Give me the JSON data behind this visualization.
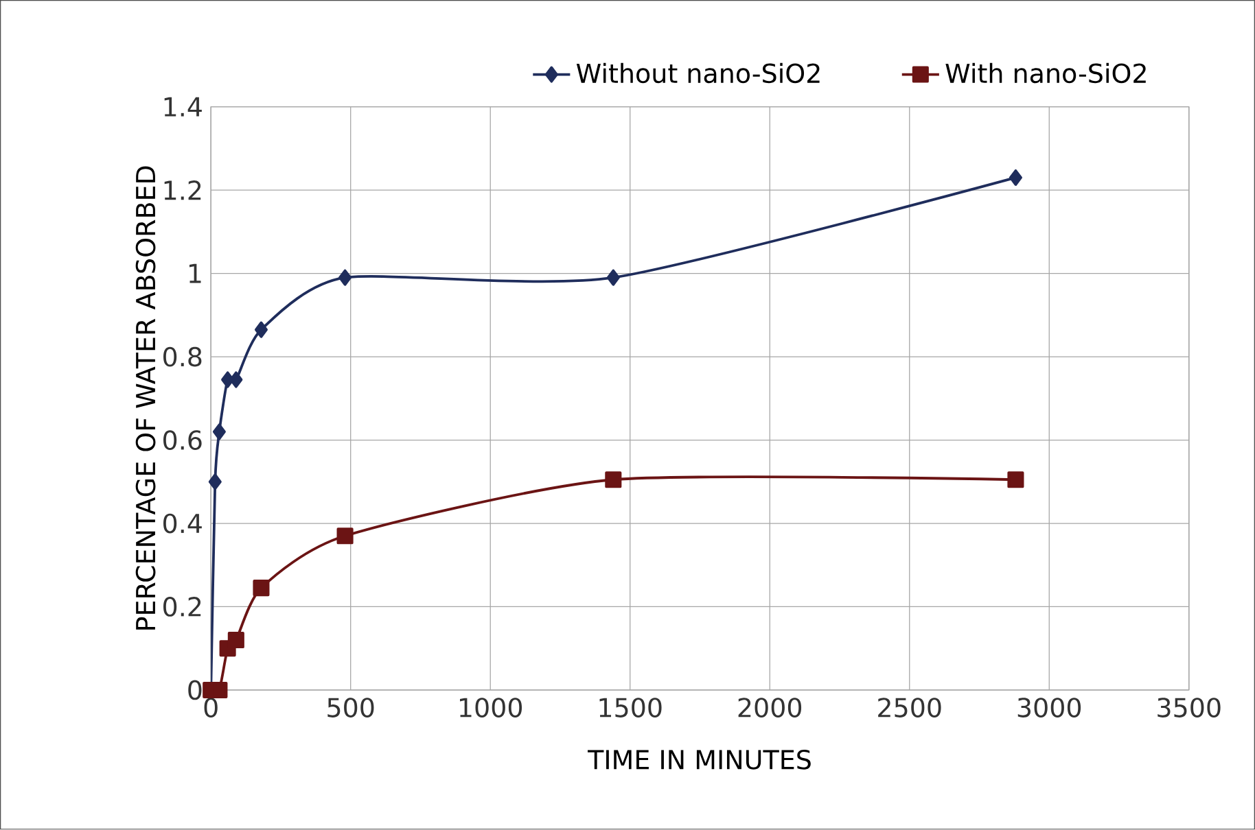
{
  "chart_data": {
    "type": "line",
    "xlabel": "TIME IN MINUTES",
    "ylabel": "PERCENTAGE OF WATER ABSORBED",
    "x": [
      0,
      15,
      30,
      60,
      90,
      180,
      480,
      1440,
      2880
    ],
    "series": [
      {
        "name": "Without nano-SiO2",
        "color": "#1f2d5c",
        "marker": "diamond",
        "values": [
          0,
          0.5,
          0.62,
          0.745,
          0.745,
          0.865,
          0.99,
          0.99,
          1.23
        ]
      },
      {
        "name": "With nano-SiO2",
        "color": "#6b1414",
        "marker": "square",
        "values": [
          0,
          0,
          0.1,
          0.12,
          0.245,
          0.37,
          0.505,
          0.505
        ],
        "x": [
          0,
          30,
          60,
          90,
          180,
          480,
          1440,
          2880
        ]
      }
    ],
    "xlim": [
      0,
      3500
    ],
    "xticks": [
      0,
      500,
      1000,
      1500,
      2000,
      2500,
      3000,
      3500
    ],
    "ylim": [
      0,
      1.4
    ],
    "yticks": [
      0,
      0.2,
      0.4,
      0.6,
      0.8,
      1,
      1.2,
      1.4
    ],
    "grid": true,
    "legend": "top",
    "line_style": "solid"
  }
}
